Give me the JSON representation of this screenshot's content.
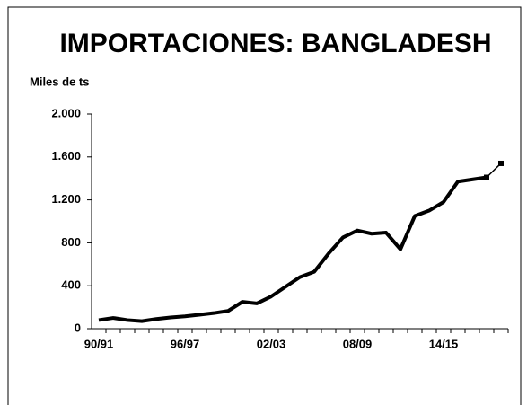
{
  "chart_data": {
    "type": "line",
    "title": "IMPORTACIONES: BANGLADESH",
    "ylabel": "Miles de ts",
    "categories": [
      "90/91",
      null,
      null,
      null,
      null,
      null,
      "96/97",
      null,
      null,
      null,
      null,
      null,
      "02/03",
      null,
      null,
      null,
      null,
      null,
      "08/09",
      null,
      null,
      null,
      null,
      null,
      "14/15",
      null,
      null,
      null,
      null
    ],
    "series": [
      {
        "color": "#000000",
        "line_width": 4,
        "markers": false,
        "values": [
          80,
          100,
          80,
          70,
          90,
          105,
          115,
          130,
          145,
          165,
          250,
          235,
          300,
          390,
          480,
          530,
          700,
          850,
          915,
          885,
          895,
          740,
          1050,
          1100,
          1180,
          1370,
          1390,
          1410,
          null
        ]
      },
      {
        "color": "#000000",
        "line_width": 1.5,
        "markers": true,
        "values": [
          null,
          null,
          null,
          null,
          null,
          null,
          null,
          null,
          null,
          null,
          null,
          null,
          null,
          null,
          null,
          null,
          null,
          null,
          null,
          null,
          null,
          null,
          null,
          null,
          null,
          null,
          null,
          1410,
          1540
        ]
      }
    ],
    "ylim": [
      0,
      2000
    ],
    "yticks": [
      0,
      400,
      800,
      {
        "value": 1200,
        "label": "1.200"
      },
      {
        "value": 1600,
        "label": "1.600"
      },
      {
        "value": 2000,
        "label": "2.000"
      }
    ],
    "grid": false
  }
}
